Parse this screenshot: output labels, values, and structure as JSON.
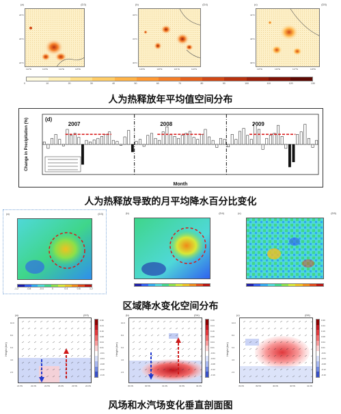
{
  "captions": {
    "heat_map": "人为热释放年平均值空间分布",
    "precip_change": "人为热释放导致的月平均降水百分比变化",
    "precip_spatial": "区域降水变化空间分布",
    "vertical_section": "风场和水汽场变化垂直剖面图"
  },
  "heat_panels": [
    {
      "label": "(a)",
      "code": "(D3)",
      "lons": [
        "112°E",
        "113°E",
        "114°E",
        "115°E"
      ],
      "lats": [
        "24°N",
        "23°N",
        "22°N"
      ]
    },
    {
      "label": "(b)",
      "code": "(D4)",
      "lons": [
        "119°E",
        "120°E",
        "121°E",
        "122°E"
      ],
      "lats": [
        "32°N",
        "31°N",
        "30°N"
      ]
    },
    {
      "label": "(c)",
      "code": "(D5)",
      "lons": [
        "115°E",
        "116°E",
        "117°E",
        "118°E"
      ],
      "lats": [
        "41°N",
        "40°N",
        "39°N"
      ]
    }
  ],
  "heat_colorbar": {
    "ticks": [
      "0",
      "10",
      "20",
      "30",
      "40",
      "50",
      "60",
      "70",
      "80",
      "90",
      "100",
      "110",
      "120",
      "130"
    ],
    "colors": [
      "#fffbe0",
      "#fff0b8",
      "#ffe08a",
      "#ffcc66",
      "#ffb347",
      "#ff9933",
      "#f57f29",
      "#e6611c",
      "#d14815",
      "#b8320e",
      "#9b1f09",
      "#7d1206",
      "#5c0903"
    ]
  },
  "chart_data": {
    "type": "bar",
    "label": "(d)",
    "years": [
      "2007",
      "2008",
      "2009"
    ],
    "ylabel": "Change in Precipitation (%)",
    "xlabel": "Month",
    "series": [
      {
        "year": "2007",
        "values": [
          5,
          -8,
          12,
          20,
          10,
          -3,
          30,
          18,
          22,
          14,
          -40,
          8,
          5,
          9,
          12,
          16,
          20,
          25,
          8,
          6,
          -2,
          15,
          28,
          -15
        ]
      },
      {
        "year": "2008",
        "values": [
          6,
          10,
          -4,
          18,
          22,
          12,
          8,
          25,
          35,
          20,
          16,
          12,
          18,
          22,
          26,
          14,
          10,
          20,
          30,
          15,
          8,
          -6,
          12,
          10
        ]
      },
      {
        "year": "2009",
        "values": [
          -5,
          20,
          10,
          26,
          32,
          18,
          10,
          40,
          30,
          -10,
          12,
          18,
          22,
          38,
          16,
          -8,
          -45,
          -35,
          20,
          25,
          40,
          12,
          -6,
          8
        ]
      }
    ],
    "ylim": [
      -60,
      60
    ]
  },
  "precip_panels": [
    {
      "label": "(a)",
      "code": "(D3)",
      "lons": [
        "112°E",
        "113°E",
        "114°E",
        "115°E"
      ],
      "lats": [
        "24°N",
        "23°N",
        "22°N"
      ]
    },
    {
      "label": "(b)",
      "code": "(D4)",
      "lons": [
        "119°E",
        "120°E",
        "121°E",
        "122°E"
      ],
      "lats": [
        "32°N",
        "31°N",
        "30°N"
      ]
    },
    {
      "label": "(c)",
      "code": "(D5)",
      "lons": [
        "115°E",
        "116°E",
        "117°E",
        "118°E"
      ],
      "lats": [
        "41°N",
        "40°N",
        "39°N"
      ]
    }
  ],
  "precip_colorbar": {
    "ticks": [
      "-1.2",
      "-0.8",
      "-0.4",
      "0",
      "0.4",
      "0.8",
      "1.2"
    ],
    "colors": [
      "#1a1aa6",
      "#2e5cf0",
      "#2ea8f0",
      "#4fd8d8",
      "#3fd68a",
      "#8be04a",
      "#d8e838",
      "#f0c020",
      "#f08a18",
      "#e04818",
      "#b8100c"
    ]
  },
  "section_panels": [
    {
      "label": "(a)",
      "code": "(D3)",
      "ylabel": "Height (km)",
      "xticks": [
        "21.5N",
        "22.0N",
        "22.5N",
        "23.0N",
        "23.5N",
        "24.0N"
      ]
    },
    {
      "label": "(b)",
      "code": "(D4)",
      "ylabel": "Height (km)",
      "xticks": [
        "30.0N",
        "30.5N",
        "31.0N",
        "31.5N",
        "32.0N"
      ]
    },
    {
      "label": "(c)",
      "code": "(D5)",
      "ylabel": "Height (km)",
      "xticks": [
        "39.0N",
        "39.5N",
        "40.0N",
        "40.5N",
        "41.0N"
      ]
    }
  ],
  "section_yticks": [
    "10.0",
    "8.0",
    "6.0",
    "4.0",
    "2.0"
  ],
  "section_colorbar": {
    "ticks": [
      "0.36",
      "0.24",
      "0.16",
      "0.08",
      "0.04",
      "0.01",
      "-0.01",
      "-0.04",
      "-0.08",
      "-0.12",
      "-0.16"
    ],
    "colors": [
      "#8b0000",
      "#c0141c",
      "#e0383c",
      "#f06a6a",
      "#f89a9a",
      "#fcd0d0",
      "#ffffff",
      "#d8e0fa",
      "#a8b8f0",
      "#7088e0",
      "#3850c8"
    ]
  }
}
